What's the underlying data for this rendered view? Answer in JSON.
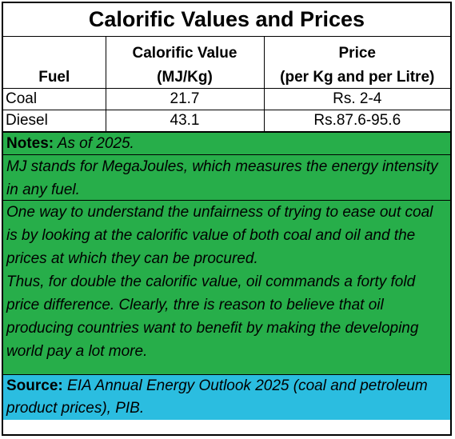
{
  "title": "Calorific Values and Prices",
  "table": {
    "headers": {
      "fuel": "Fuel",
      "calorific_line1": "Calorific Value",
      "calorific_line2": "(MJ/Kg)",
      "price_line1": "Price",
      "price_line2": "(per Kg and per Litre)"
    },
    "rows": [
      {
        "fuel": "Coal",
        "calorific": "21.7",
        "price": "Rs. 2-4"
      },
      {
        "fuel": "Diesel",
        "calorific": "43.1",
        "price": "Rs.87.6-95.6"
      }
    ]
  },
  "notes": {
    "label": "Notes:",
    "text": "As of 2025.",
    "mj": "MJ stands for MegaJoules, which measures the energy intensity in any fuel.",
    "para1": "One way to understand the unfairness of trying to ease out coal is by looking at the calorific value of both coal and oil and the prices at which they can be procured.",
    "para2": "Thus, for double the calorific value, oil commands a forty fold price difference. Clearly, thre is reason to believe that oil producing countries want to benefit by making the developing world pay a lot more."
  },
  "source": {
    "label": "Source:",
    "text": "EIA Annual Energy Outlook 2025 (coal and petroleum product prices), PIB."
  },
  "colors": {
    "notes_bg": "#27ae4a",
    "source_bg": "#2bbde0"
  }
}
